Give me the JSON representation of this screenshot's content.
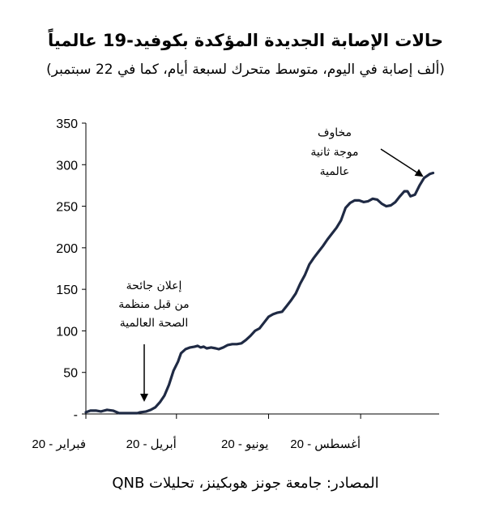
{
  "chart_data": {
    "type": "line",
    "title": "حالات الإصابة الجديدة المؤكدة بكوفيد-19 عالمياً",
    "subtitle": "(ألف إصابة في اليوم، متوسط متحرك لسبعة أيام، كما في 22 سبتمبر)",
    "source": "المصادر: جامعة جونز هوبكينز، تحليلات QNB",
    "ylim": [
      0,
      350
    ],
    "yticks": [
      "-",
      "50",
      "100",
      "150",
      "200",
      "250",
      "300",
      "350"
    ],
    "ytick_values": [
      0,
      50,
      100,
      150,
      200,
      250,
      300,
      350
    ],
    "xticks": [
      {
        "label": "فبراير - 20",
        "day": 0
      },
      {
        "label": "أبريل - 20",
        "day": 60
      },
      {
        "label": "يونيو - 20",
        "day": 121
      },
      {
        "label": "أغسطس - 20",
        "day": 182
      }
    ],
    "xlim": [
      0,
      234
    ],
    "series": [
      {
        "color": "#1f2a44",
        "points": [
          [
            0,
            2
          ],
          [
            3,
            4
          ],
          [
            7,
            4
          ],
          [
            10,
            3
          ],
          [
            14,
            5
          ],
          [
            18,
            4
          ],
          [
            22,
            1
          ],
          [
            26,
            1
          ],
          [
            30,
            1
          ],
          [
            34,
            1
          ],
          [
            36,
            2
          ],
          [
            40,
            3
          ],
          [
            43,
            5
          ],
          [
            46,
            8
          ],
          [
            49,
            14
          ],
          [
            52,
            22
          ],
          [
            55,
            35
          ],
          [
            58,
            52
          ],
          [
            61,
            63
          ],
          [
            63,
            73
          ],
          [
            66,
            78
          ],
          [
            69,
            80
          ],
          [
            72,
            81
          ],
          [
            74,
            82
          ],
          [
            76,
            80
          ],
          [
            78,
            81
          ],
          [
            80,
            79
          ],
          [
            83,
            80
          ],
          [
            86,
            79
          ],
          [
            88,
            78
          ],
          [
            91,
            80
          ],
          [
            94,
            83
          ],
          [
            97,
            84
          ],
          [
            100,
            84
          ],
          [
            103,
            85
          ],
          [
            106,
            89
          ],
          [
            109,
            94
          ],
          [
            112,
            100
          ],
          [
            115,
            103
          ],
          [
            118,
            110
          ],
          [
            121,
            117
          ],
          [
            124,
            120
          ],
          [
            127,
            122
          ],
          [
            130,
            123
          ],
          [
            133,
            130
          ],
          [
            136,
            137
          ],
          [
            139,
            145
          ],
          [
            142,
            157
          ],
          [
            145,
            167
          ],
          [
            148,
            180
          ],
          [
            151,
            188
          ],
          [
            154,
            195
          ],
          [
            157,
            202
          ],
          [
            160,
            210
          ],
          [
            163,
            217
          ],
          [
            166,
            224
          ],
          [
            169,
            233
          ],
          [
            172,
            248
          ],
          [
            175,
            254
          ],
          [
            178,
            257
          ],
          [
            181,
            257
          ],
          [
            184,
            255
          ],
          [
            187,
            256
          ],
          [
            190,
            259
          ],
          [
            193,
            258
          ],
          [
            196,
            253
          ],
          [
            199,
            250
          ],
          [
            202,
            251
          ],
          [
            205,
            255
          ],
          [
            208,
            262
          ],
          [
            211,
            268
          ],
          [
            213,
            268
          ],
          [
            215,
            262
          ],
          [
            218,
            264
          ],
          [
            221,
            275
          ],
          [
            224,
            284
          ],
          [
            228,
            289
          ],
          [
            230,
            290
          ]
        ]
      }
    ],
    "annotations": [
      {
        "lines": [
          "إعلان جائحة",
          "من قبل منظمة",
          "الصحة العالمية"
        ]
      },
      {
        "lines": [
          "مخاوف",
          "موجة ثانية",
          "عالمية"
        ]
      }
    ]
  }
}
